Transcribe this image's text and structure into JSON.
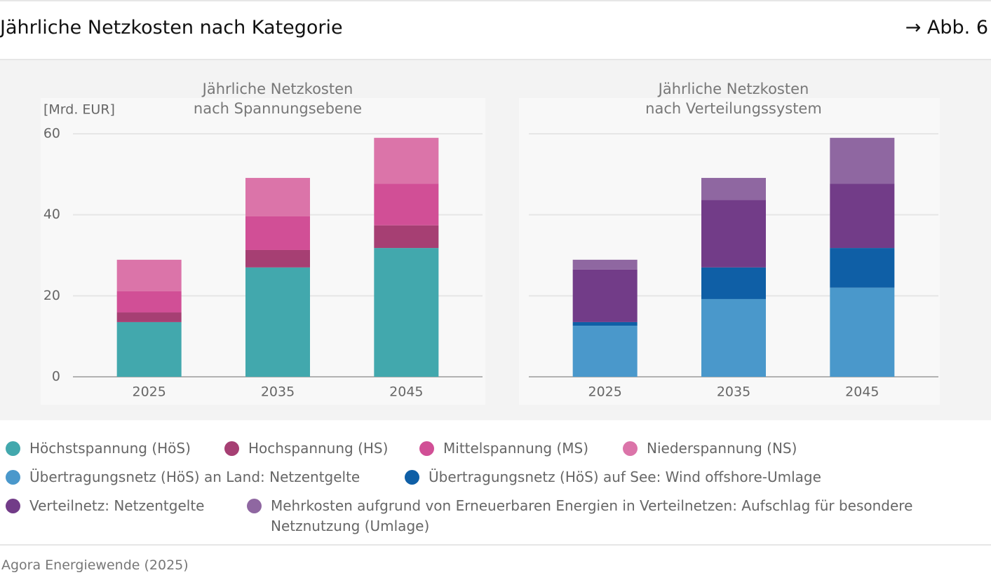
{
  "header": {
    "title": "Jährliche Netzkosten nach Kategorie",
    "figure": "→ Abb. 6"
  },
  "source": "Agora Energiewende (2025)",
  "chart_data": [
    {
      "type": "stacked_bar",
      "title": [
        "Jährliche Netzkosten",
        "nach Spannungsebene"
      ],
      "ylabel": "[Mrd. EUR]",
      "categories": [
        "2025",
        "2035",
        "2045"
      ],
      "series": [
        {
          "name": "Höchstspannung (HöS)",
          "color": "#42a8ad",
          "values": [
            13.5,
            27.0,
            31.8
          ]
        },
        {
          "name": "Hochspannung (HS)",
          "color": "#a63f73",
          "values": [
            2.4,
            4.3,
            5.6
          ]
        },
        {
          "name": "Mittelspannung (MS)",
          "color": "#d14f96",
          "values": [
            5.2,
            8.3,
            10.3
          ]
        },
        {
          "name": "Niederspannung (NS)",
          "color": "#db74a9",
          "values": [
            7.8,
            9.5,
            11.3
          ]
        }
      ],
      "ylim": [
        0,
        60
      ],
      "yticks": [
        0,
        20,
        40,
        60
      ],
      "grid": true
    },
    {
      "type": "stacked_bar",
      "title": [
        "Jährliche Netzkosten",
        "nach Verteilungssystem"
      ],
      "categories": [
        "2025",
        "2035",
        "2045"
      ],
      "series": [
        {
          "name": "Übertragungsnetz (HöS) an Land: Netzentgelte",
          "color": "#4a98cb",
          "values": [
            12.6,
            19.2,
            22.0
          ]
        },
        {
          "name": "Übertragungsnetz (HöS) auf See: Wind offshore-Umlage",
          "color": "#0f5fa6",
          "values": [
            0.9,
            7.8,
            9.8
          ]
        },
        {
          "name": "Verteilnetz: Netzentgelte",
          "color": "#723c88",
          "values": [
            13.0,
            16.7,
            15.9
          ]
        },
        {
          "name": "Mehrkosten aufgrund von Erneuerbaren Energien in Verteilnetzen: Aufschlag für besondere Netznutzung (Umlage)",
          "color": "#8f67a1",
          "values": [
            2.4,
            5.4,
            11.3
          ]
        }
      ],
      "ylim": [
        0,
        60
      ],
      "yticks": [
        0,
        20,
        40,
        60
      ],
      "grid": true,
      "show_ytick_labels": false
    }
  ]
}
